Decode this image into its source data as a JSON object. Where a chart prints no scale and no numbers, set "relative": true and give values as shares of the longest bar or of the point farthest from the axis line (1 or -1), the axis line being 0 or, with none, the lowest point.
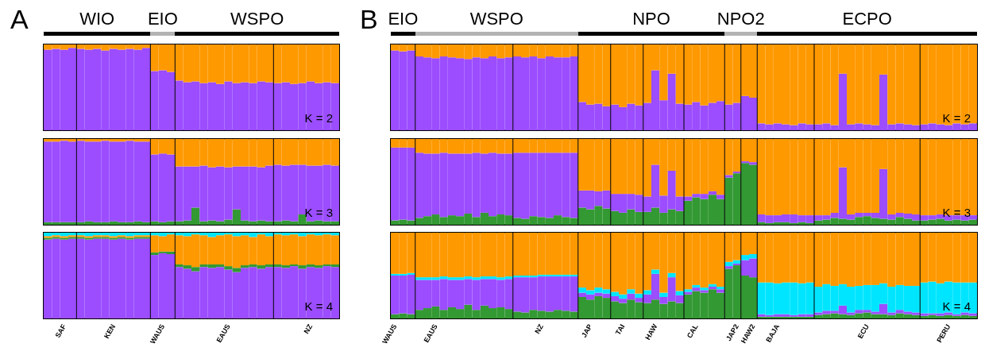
{
  "chart_data": [
    {
      "type": "bar",
      "stacked": true,
      "relative": true,
      "title": "A",
      "tick_labels": false,
      "categories": [
        null,
        null,
        null,
        null,
        null,
        null,
        null,
        null,
        null,
        null,
        null,
        null,
        null,
        null,
        null,
        null,
        null,
        null,
        null,
        null,
        null,
        null,
        null,
        null,
        null,
        null,
        null,
        null,
        null,
        null,
        null,
        null,
        null,
        null,
        null,
        null
      ],
      "series": [
        {
          "color": "#9b4dff",
          "values": [
            0.94,
            0.95,
            0.94,
            0.96,
            0.95,
            0.94,
            0.95,
            0.93,
            0.95,
            0.94,
            0.95,
            0.94,
            0.96,
            0.69,
            0.7,
            0.68,
            0.58,
            0.56,
            0.57,
            0.55,
            0.56,
            0.54,
            0.57,
            0.55,
            0.56,
            0.55,
            0.57,
            0.56,
            0.55,
            0.56,
            0.54,
            0.55,
            0.57,
            0.55,
            0.56,
            0.55
          ]
        },
        {
          "color": "#ff9900",
          "values": [
            0.06,
            0.05,
            0.06,
            0.04,
            0.05,
            0.06,
            0.05,
            0.07,
            0.05,
            0.06,
            0.05,
            0.06,
            0.04,
            0.31,
            0.3,
            0.32,
            0.42,
            0.44,
            0.43,
            0.45,
            0.44,
            0.46,
            0.43,
            0.45,
            0.44,
            0.45,
            0.43,
            0.44,
            0.45,
            0.44,
            0.46,
            0.45,
            0.43,
            0.45,
            0.44,
            0.45
          ]
        }
      ],
      "annotations": [
        "K = 2",
        "WIO",
        "EIO",
        "WSPO"
      ]
    },
    {
      "type": "bar",
      "stacked": true,
      "relative": true,
      "tick_labels": false,
      "categories": [
        null,
        null,
        null,
        null,
        null,
        null,
        null,
        null,
        null,
        null,
        null,
        null,
        null,
        null,
        null,
        null,
        null,
        null,
        null,
        null,
        null,
        null,
        null,
        null,
        null,
        null,
        null,
        null,
        null,
        null,
        null,
        null,
        null,
        null,
        null,
        null
      ],
      "series": [
        {
          "color": "#339933",
          "values": [
            0.03,
            0.03,
            0.03,
            0.03,
            0.03,
            0.04,
            0.03,
            0.03,
            0.04,
            0.03,
            0.03,
            0.04,
            0.03,
            0.04,
            0.03,
            0.04,
            0.04,
            0.05,
            0.2,
            0.04,
            0.05,
            0.04,
            0.06,
            0.18,
            0.05,
            0.04,
            0.05,
            0.04,
            0.04,
            0.05,
            0.04,
            0.12,
            0.04,
            0.05,
            0.04,
            0.04
          ]
        },
        {
          "color": "#9b4dff",
          "values": [
            0.94,
            0.94,
            0.95,
            0.94,
            0.95,
            0.93,
            0.94,
            0.95,
            0.93,
            0.94,
            0.95,
            0.93,
            0.94,
            0.78,
            0.8,
            0.78,
            0.64,
            0.63,
            0.48,
            0.65,
            0.62,
            0.64,
            0.61,
            0.5,
            0.63,
            0.64,
            0.62,
            0.65,
            0.66,
            0.64,
            0.66,
            0.58,
            0.65,
            0.64,
            0.66,
            0.65
          ]
        },
        {
          "color": "#ff9900",
          "values": [
            0.03,
            0.03,
            0.02,
            0.03,
            0.02,
            0.03,
            0.03,
            0.02,
            0.03,
            0.03,
            0.02,
            0.03,
            0.03,
            0.18,
            0.17,
            0.18,
            0.32,
            0.32,
            0.32,
            0.31,
            0.33,
            0.32,
            0.33,
            0.32,
            0.32,
            0.32,
            0.33,
            0.31,
            0.3,
            0.31,
            0.3,
            0.3,
            0.31,
            0.31,
            0.3,
            0.31
          ]
        }
      ],
      "annotations": [
        "K = 3"
      ]
    },
    {
      "type": "bar",
      "stacked": true,
      "relative": true,
      "categories": [
        null,
        null,
        "SAF",
        null,
        null,
        null,
        null,
        null,
        "KEN",
        null,
        null,
        null,
        null,
        null,
        "WAUS",
        null,
        null,
        null,
        null,
        null,
        null,
        null,
        "EAUS",
        null,
        null,
        null,
        null,
        null,
        null,
        null,
        null,
        null,
        "NZ",
        null,
        null,
        null
      ],
      "series": [
        {
          "color": "#9b4dff",
          "values": [
            0.92,
            0.93,
            0.92,
            0.93,
            0.93,
            0.92,
            0.93,
            0.93,
            0.92,
            0.93,
            0.92,
            0.93,
            0.93,
            0.74,
            0.76,
            0.75,
            0.6,
            0.58,
            0.55,
            0.6,
            0.59,
            0.6,
            0.57,
            0.54,
            0.59,
            0.6,
            0.58,
            0.6,
            0.6,
            0.59,
            0.61,
            0.58,
            0.6,
            0.59,
            0.61,
            0.6
          ]
        },
        {
          "color": "#339933",
          "values": [
            0.02,
            0.02,
            0.02,
            0.02,
            0.02,
            0.02,
            0.02,
            0.02,
            0.02,
            0.02,
            0.02,
            0.02,
            0.02,
            0.03,
            0.02,
            0.03,
            0.03,
            0.04,
            0.05,
            0.03,
            0.04,
            0.03,
            0.04,
            0.05,
            0.03,
            0.03,
            0.04,
            0.03,
            0.03,
            0.03,
            0.02,
            0.04,
            0.03,
            0.03,
            0.02,
            0.03
          ]
        },
        {
          "color": "#ff9900",
          "values": [
            0.02,
            0.02,
            0.02,
            0.02,
            0.02,
            0.02,
            0.02,
            0.02,
            0.02,
            0.02,
            0.02,
            0.02,
            0.02,
            0.2,
            0.18,
            0.2,
            0.34,
            0.34,
            0.38,
            0.34,
            0.32,
            0.34,
            0.37,
            0.37,
            0.35,
            0.32,
            0.36,
            0.33,
            0.35,
            0.35,
            0.35,
            0.34,
            0.35,
            0.35,
            0.35,
            0.34
          ]
        },
        {
          "color": "#00e5ff",
          "values": [
            0.04,
            0.03,
            0.04,
            0.03,
            0.03,
            0.04,
            0.03,
            0.03,
            0.04,
            0.03,
            0.04,
            0.03,
            0.03,
            0.03,
            0.04,
            0.02,
            0.03,
            0.04,
            0.02,
            0.03,
            0.05,
            0.03,
            0.02,
            0.04,
            0.03,
            0.05,
            0.02,
            0.04,
            0.02,
            0.03,
            0.02,
            0.04,
            0.02,
            0.03,
            0.02,
            0.03
          ]
        }
      ],
      "annotations": [
        "K = 4"
      ]
    },
    {
      "type": "bar",
      "stacked": true,
      "relative": true,
      "title": "B",
      "tick_labels": false,
      "categories": [
        null,
        null,
        null,
        null,
        null,
        null,
        null,
        null,
        null,
        null,
        null,
        null,
        null,
        null,
        null,
        null,
        null,
        null,
        null,
        null,
        null,
        null,
        null,
        null,
        null,
        null,
        null,
        null,
        null,
        null,
        null,
        null,
        null,
        null,
        null,
        null,
        null,
        null,
        null,
        null,
        null,
        null,
        null,
        null,
        null,
        null,
        null,
        null,
        null,
        null,
        null,
        null,
        null,
        null,
        null,
        null,
        null,
        null,
        null,
        null,
        null,
        null,
        null,
        null,
        null,
        null,
        null,
        null,
        null,
        null,
        null,
        null
      ],
      "series": [
        {
          "color": "#9b4dff",
          "values": [
            0.93,
            0.92,
            0.93,
            0.86,
            0.85,
            0.84,
            0.86,
            0.85,
            0.84,
            0.83,
            0.85,
            0.84,
            0.86,
            0.84,
            0.85,
            0.86,
            0.85,
            0.86,
            0.84,
            0.86,
            0.85,
            0.85,
            0.86,
            0.33,
            0.3,
            0.31,
            0.28,
            0.3,
            0.27,
            0.31,
            0.29,
            0.32,
            0.7,
            0.35,
            0.66,
            0.31,
            0.3,
            0.33,
            0.29,
            0.32,
            0.34,
            0.3,
            0.32,
            0.4,
            0.38,
            0.08,
            0.07,
            0.08,
            0.07,
            0.06,
            0.08,
            0.07,
            0.07,
            0.08,
            0.06,
            0.66,
            0.07,
            0.08,
            0.07,
            0.06,
            0.65,
            0.07,
            0.08,
            0.07,
            0.06,
            0.07,
            0.08,
            0.07,
            0.06,
            0.08,
            0.07,
            0.08
          ]
        },
        {
          "color": "#ff9900",
          "values": [
            0.07,
            0.08,
            0.07,
            0.14,
            0.15,
            0.16,
            0.14,
            0.15,
            0.16,
            0.17,
            0.15,
            0.16,
            0.14,
            0.16,
            0.15,
            0.14,
            0.15,
            0.14,
            0.16,
            0.14,
            0.15,
            0.15,
            0.14,
            0.67,
            0.7,
            0.69,
            0.72,
            0.7,
            0.73,
            0.69,
            0.71,
            0.68,
            0.3,
            0.65,
            0.34,
            0.69,
            0.7,
            0.67,
            0.71,
            0.68,
            0.66,
            0.7,
            0.68,
            0.6,
            0.62,
            0.92,
            0.93,
            0.92,
            0.93,
            0.94,
            0.92,
            0.93,
            0.93,
            0.92,
            0.94,
            0.34,
            0.93,
            0.92,
            0.93,
            0.94,
            0.35,
            0.93,
            0.92,
            0.93,
            0.94,
            0.93,
            0.92,
            0.93,
            0.94,
            0.92,
            0.93,
            0.92
          ]
        }
      ],
      "annotations": [
        "K = 2",
        "EIO",
        "WSPO",
        "NPO",
        "NPO2",
        "ECPO"
      ]
    },
    {
      "type": "bar",
      "stacked": true,
      "relative": true,
      "tick_labels": false,
      "categories": [
        null,
        null,
        null,
        null,
        null,
        null,
        null,
        null,
        null,
        null,
        null,
        null,
        null,
        null,
        null,
        null,
        null,
        null,
        null,
        null,
        null,
        null,
        null,
        null,
        null,
        null,
        null,
        null,
        null,
        null,
        null,
        null,
        null,
        null,
        null,
        null,
        null,
        null,
        null,
        null,
        null,
        null,
        null,
        null,
        null,
        null,
        null,
        null,
        null,
        null,
        null,
        null,
        null,
        null,
        null,
        null,
        null,
        null,
        null,
        null,
        null,
        null,
        null,
        null,
        null,
        null,
        null,
        null,
        null,
        null,
        null,
        null
      ],
      "series": [
        {
          "color": "#339933",
          "values": [
            0.05,
            0.06,
            0.05,
            0.08,
            0.1,
            0.12,
            0.09,
            0.11,
            0.1,
            0.13,
            0.09,
            0.14,
            0.1,
            0.12,
            0.11,
            0.08,
            0.07,
            0.1,
            0.09,
            0.08,
            0.11,
            0.09,
            0.08,
            0.2,
            0.18,
            0.22,
            0.19,
            0.16,
            0.14,
            0.18,
            0.15,
            0.15,
            0.2,
            0.14,
            0.18,
            0.16,
            0.28,
            0.32,
            0.3,
            0.35,
            0.3,
            0.55,
            0.6,
            0.72,
            0.7,
            0.03,
            0.02,
            0.03,
            0.03,
            0.02,
            0.03,
            0.02,
            0.05,
            0.06,
            0.08,
            0.07,
            0.06,
            0.09,
            0.1,
            0.08,
            0.07,
            0.06,
            0.09,
            0.07,
            0.05,
            0.05,
            0.06,
            0.07,
            0.05,
            0.06,
            0.05,
            0.06
          ]
        },
        {
          "color": "#9b4dff",
          "values": [
            0.85,
            0.84,
            0.85,
            0.76,
            0.73,
            0.71,
            0.75,
            0.72,
            0.73,
            0.7,
            0.75,
            0.69,
            0.74,
            0.71,
            0.72,
            0.76,
            0.77,
            0.74,
            0.75,
            0.76,
            0.73,
            0.75,
            0.76,
            0.2,
            0.22,
            0.17,
            0.21,
            0.2,
            0.22,
            0.18,
            0.2,
            0.18,
            0.5,
            0.2,
            0.45,
            0.17,
            0.05,
            0.04,
            0.06,
            0.04,
            0.05,
            0.03,
            0.02,
            0.02,
            0.03,
            0.09,
            0.09,
            0.08,
            0.09,
            0.1,
            0.08,
            0.09,
            0.06,
            0.05,
            0.06,
            0.6,
            0.06,
            0.05,
            0.04,
            0.06,
            0.58,
            0.06,
            0.05,
            0.06,
            0.07,
            0.06,
            0.05,
            0.05,
            0.06,
            0.05,
            0.06,
            0.05
          ]
        },
        {
          "color": "#ff9900",
          "values": [
            0.1,
            0.1,
            0.1,
            0.16,
            0.17,
            0.17,
            0.16,
            0.17,
            0.17,
            0.17,
            0.16,
            0.17,
            0.16,
            0.17,
            0.17,
            0.16,
            0.16,
            0.16,
            0.16,
            0.16,
            0.16,
            0.16,
            0.16,
            0.6,
            0.6,
            0.61,
            0.6,
            0.64,
            0.64,
            0.64,
            0.65,
            0.67,
            0.3,
            0.66,
            0.37,
            0.67,
            0.67,
            0.64,
            0.64,
            0.61,
            0.65,
            0.42,
            0.38,
            0.26,
            0.27,
            0.88,
            0.89,
            0.89,
            0.88,
            0.88,
            0.89,
            0.89,
            0.89,
            0.89,
            0.86,
            0.33,
            0.88,
            0.86,
            0.86,
            0.86,
            0.35,
            0.88,
            0.86,
            0.87,
            0.88,
            0.89,
            0.89,
            0.88,
            0.89,
            0.89,
            0.89,
            0.89
          ]
        }
      ],
      "annotations": [
        "K = 3"
      ]
    },
    {
      "type": "bar",
      "stacked": true,
      "relative": true,
      "categories": [
        "WAUS",
        null,
        null,
        null,
        null,
        "EAUS",
        null,
        null,
        null,
        null,
        null,
        null,
        null,
        null,
        null,
        null,
        null,
        null,
        "NZ",
        null,
        null,
        null,
        null,
        null,
        "JAP",
        null,
        null,
        null,
        "TAI",
        null,
        null,
        null,
        "HAW",
        null,
        null,
        null,
        null,
        "CAL",
        null,
        null,
        null,
        null,
        "JAP2",
        null,
        "HAW2",
        null,
        null,
        "BAJA",
        null,
        null,
        null,
        null,
        null,
        null,
        null,
        null,
        null,
        null,
        "ECU",
        null,
        null,
        null,
        null,
        null,
        null,
        null,
        null,
        null,
        "PERU",
        null,
        null,
        null
      ],
      "series": [
        {
          "color": "#339933",
          "values": [
            0.05,
            0.06,
            0.05,
            0.1,
            0.12,
            0.14,
            0.1,
            0.13,
            0.11,
            0.16,
            0.1,
            0.15,
            0.12,
            0.13,
            0.11,
            0.08,
            0.07,
            0.1,
            0.09,
            0.08,
            0.1,
            0.09,
            0.08,
            0.25,
            0.22,
            0.26,
            0.24,
            0.2,
            0.18,
            0.22,
            0.19,
            0.18,
            0.22,
            0.17,
            0.2,
            0.18,
            0.28,
            0.32,
            0.3,
            0.34,
            0.3,
            0.58,
            0.62,
            0.5,
            0.48,
            0.02,
            0.02,
            0.02,
            0.02,
            0.02,
            0.02,
            0.02,
            0.04,
            0.05,
            0.06,
            0.05,
            0.04,
            0.06,
            0.07,
            0.05,
            0.05,
            0.04,
            0.06,
            0.05,
            0.04,
            0.03,
            0.04,
            0.03,
            0.04,
            0.03,
            0.04,
            0.03
          ]
        },
        {
          "color": "#9b4dff",
          "values": [
            0.45,
            0.44,
            0.46,
            0.35,
            0.33,
            0.31,
            0.36,
            0.32,
            0.34,
            0.3,
            0.35,
            0.31,
            0.34,
            0.32,
            0.35,
            0.4,
            0.41,
            0.38,
            0.4,
            0.41,
            0.39,
            0.4,
            0.41,
            0.05,
            0.06,
            0.04,
            0.05,
            0.06,
            0.05,
            0.07,
            0.05,
            0.1,
            0.3,
            0.08,
            0.28,
            0.09,
            0.03,
            0.04,
            0.03,
            0.03,
            0.04,
            0.03,
            0.02,
            0.18,
            0.22,
            0.03,
            0.02,
            0.03,
            0.03,
            0.02,
            0.03,
            0.03,
            0.03,
            0.04,
            0.03,
            0.1,
            0.03,
            0.04,
            0.03,
            0.03,
            0.12,
            0.03,
            0.04,
            0.03,
            0.03,
            0.03,
            0.02,
            0.03,
            0.03,
            0.02,
            0.03,
            0.03
          ]
        },
        {
          "color": "#00e5ff",
          "values": [
            0.02,
            0.02,
            0.02,
            0.03,
            0.03,
            0.03,
            0.03,
            0.03,
            0.03,
            0.03,
            0.03,
            0.03,
            0.03,
            0.03,
            0.03,
            0.02,
            0.02,
            0.02,
            0.02,
            0.02,
            0.02,
            0.02,
            0.02,
            0.06,
            0.05,
            0.06,
            0.05,
            0.05,
            0.05,
            0.05,
            0.05,
            0.05,
            0.05,
            0.05,
            0.05,
            0.05,
            0.03,
            0.03,
            0.03,
            0.03,
            0.03,
            0.05,
            0.04,
            0.06,
            0.05,
            0.37,
            0.38,
            0.36,
            0.37,
            0.38,
            0.36,
            0.37,
            0.3,
            0.31,
            0.29,
            0.25,
            0.3,
            0.28,
            0.29,
            0.31,
            0.24,
            0.3,
            0.29,
            0.3,
            0.31,
            0.36,
            0.37,
            0.35,
            0.36,
            0.37,
            0.35,
            0.36
          ]
        },
        {
          "color": "#ff9900",
          "values": [
            0.48,
            0.48,
            0.47,
            0.52,
            0.52,
            0.52,
            0.51,
            0.52,
            0.52,
            0.51,
            0.52,
            0.51,
            0.51,
            0.52,
            0.51,
            0.5,
            0.5,
            0.5,
            0.49,
            0.49,
            0.49,
            0.49,
            0.49,
            0.64,
            0.67,
            0.64,
            0.66,
            0.69,
            0.72,
            0.66,
            0.71,
            0.67,
            0.43,
            0.7,
            0.47,
            0.68,
            0.66,
            0.61,
            0.64,
            0.6,
            0.63,
            0.34,
            0.32,
            0.26,
            0.25,
            0.58,
            0.58,
            0.59,
            0.58,
            0.58,
            0.59,
            0.58,
            0.63,
            0.6,
            0.62,
            0.6,
            0.63,
            0.62,
            0.61,
            0.61,
            0.59,
            0.63,
            0.61,
            0.62,
            0.62,
            0.58,
            0.57,
            0.59,
            0.57,
            0.58,
            0.58,
            0.58
          ]
        }
      ],
      "annotations": [
        "K = 4"
      ]
    }
  ]
}
